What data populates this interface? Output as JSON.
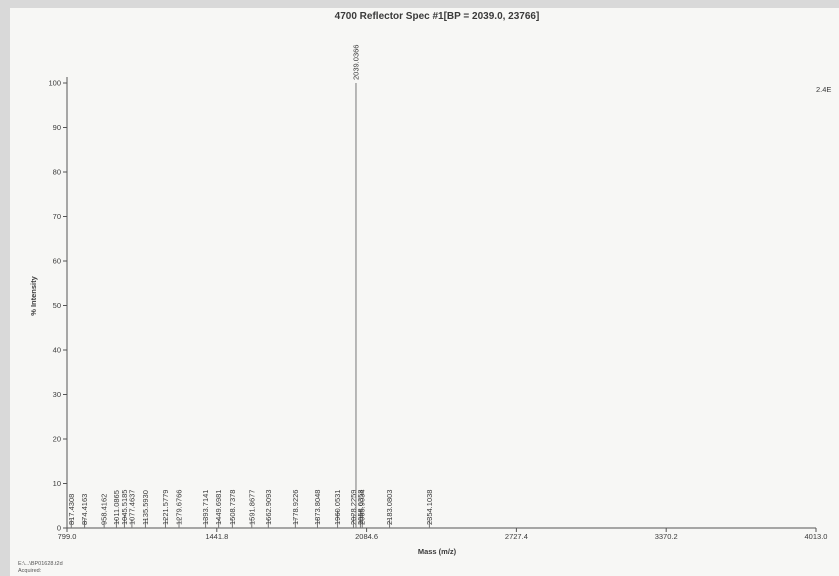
{
  "chart_data": {
    "type": "bar",
    "title": "4700 Reflector Spec #1[BP = 2039.0, 23766]",
    "xlabel": "Mass (m/z)",
    "ylabel": "% Intensity",
    "xlim": [
      799.0,
      4013.0
    ],
    "ylim": [
      0,
      100
    ],
    "x_ticks": [
      "799.0",
      "1441.8",
      "2084.6",
      "2727.4",
      "3370.2",
      "4013.0"
    ],
    "y_ticks": [
      "0",
      "10",
      "20",
      "30",
      "40",
      "50",
      "60",
      "70",
      "80",
      "90",
      "100"
    ],
    "right_annotation": "2.4E",
    "grid": false,
    "peaks": [
      {
        "x": 817.4308,
        "y": 2.0,
        "label": "817.4308"
      },
      {
        "x": 874.4163,
        "y": 2.0,
        "label": "874.4163"
      },
      {
        "x": 958.4162,
        "y": 1.5,
        "label": "958.4162"
      },
      {
        "x": 1011.0865,
        "y": 2.0,
        "label": "1011.0865"
      },
      {
        "x": 1045.5185,
        "y": 3.0,
        "label": "1045.5185"
      },
      {
        "x": 1077.4637,
        "y": 2.0,
        "label": "1077.4637"
      },
      {
        "x": 1135.593,
        "y": 2.0,
        "label": "1135.5930"
      },
      {
        "x": 1221.5779,
        "y": 2.0,
        "label": "1221.5779"
      },
      {
        "x": 1279.6766,
        "y": 2.0,
        "label": "1279.6766"
      },
      {
        "x": 1393.7141,
        "y": 2.0,
        "label": "1393.7141"
      },
      {
        "x": 1449.6981,
        "y": 2.0,
        "label": "1449.6981"
      },
      {
        "x": 1508.7378,
        "y": 2.0,
        "label": "1508.7378"
      },
      {
        "x": 1591.8677,
        "y": 2.0,
        "label": "1591.8677"
      },
      {
        "x": 1662.9093,
        "y": 2.0,
        "label": "1662.9093"
      },
      {
        "x": 1778.9226,
        "y": 2.0,
        "label": "1778.9226"
      },
      {
        "x": 1873.8048,
        "y": 2.0,
        "label": "1873.8048"
      },
      {
        "x": 1960.0531,
        "y": 4.0,
        "label": "1960.0531"
      },
      {
        "x": 2028.2259,
        "y": 3.0,
        "label": "2028.2259"
      },
      {
        "x": 2039.0366,
        "y": 100.0,
        "label": "2039.0366"
      },
      {
        "x": 2058.0358,
        "y": 4.0,
        "label": "2058.0358"
      },
      {
        "x": 2065.9034,
        "y": 3.0,
        "label": "2065.9034"
      },
      {
        "x": 2183.0803,
        "y": 2.0,
        "label": "2183.0803"
      },
      {
        "x": 2354.1038,
        "y": 2.0,
        "label": "2354.1038"
      }
    ]
  },
  "footer": {
    "path": "E:\\...\\BP01628.t2d",
    "acquired": "Acquired:"
  }
}
